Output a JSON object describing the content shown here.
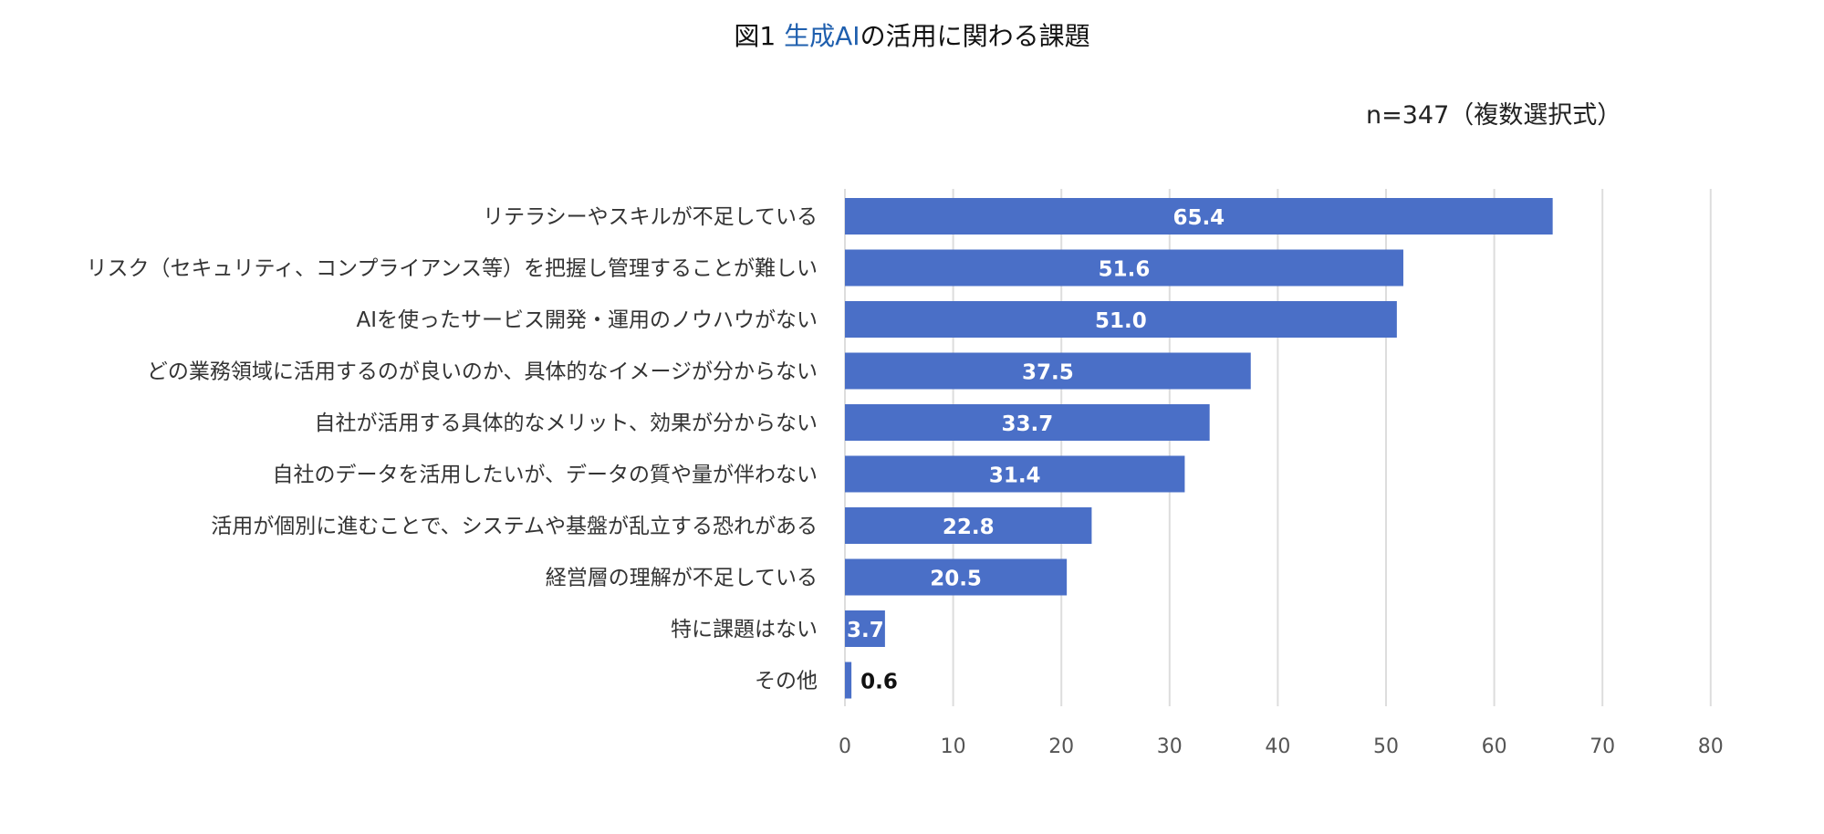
{
  "chart_data": {
    "type": "bar",
    "orientation": "horizontal",
    "title_prefix": "図1 ",
    "title_accent": "生成AI",
    "title_suffix": "の活用に関わる課題",
    "note": "n=347（複数選択式）",
    "categories": [
      "リテラシーやスキルが不足している",
      "リスク（セキュリティ、コンプライアンス等）を把握し管理することが難しい",
      "AIを使ったサービス開発・運用のノウハウがない",
      "どの業務領域に活用するのが良いのか、具体的なイメージが分からない",
      "自社が活用する具体的なメリット、効果が分からない",
      "自社のデータを活用したいが、データの質や量が伴わない",
      "活用が個別に進むことで、システムや基盤が乱立する恐れがある",
      "経営層の理解が不足している",
      "特に課題はない",
      "その他"
    ],
    "values": [
      65.4,
      51.6,
      51.0,
      37.5,
      33.7,
      31.4,
      22.8,
      20.5,
      3.7,
      0.6
    ],
    "value_labels": [
      "65.4",
      "51.6",
      "51.0",
      "37.5",
      "33.7",
      "31.4",
      "22.8",
      "20.5",
      "3.7",
      "0.6"
    ],
    "xlim": [
      0,
      80
    ],
    "xticks": [
      0,
      10,
      20,
      30,
      40,
      50,
      60,
      70,
      80
    ],
    "grid": true,
    "bar_color": "#4a6fc7",
    "grid_color": "#dddddd"
  }
}
